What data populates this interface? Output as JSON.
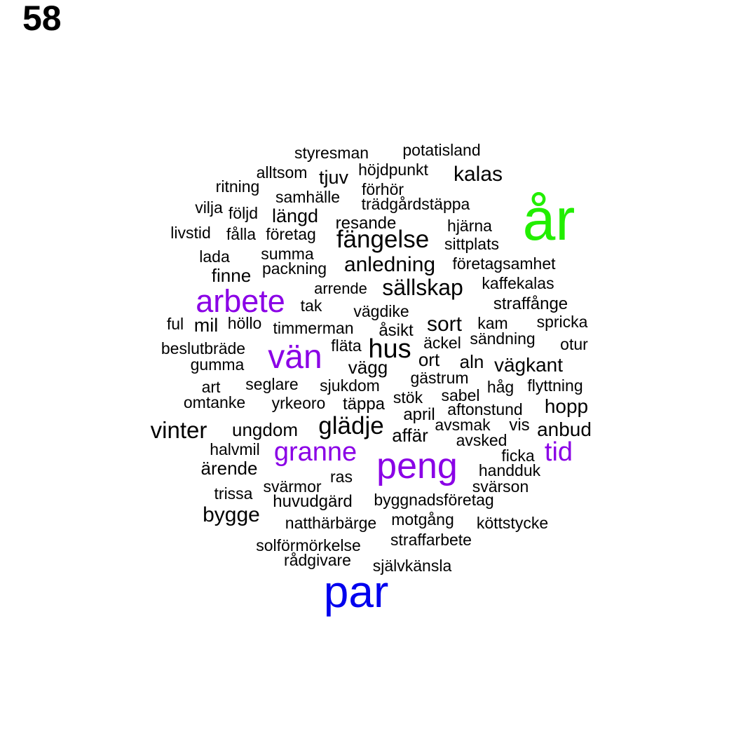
{
  "page_number": "58",
  "colors": {
    "green": "#22ee00",
    "blue": "#0000ee",
    "purple": "#8a00e6",
    "black": "#000000"
  },
  "words": [
    {
      "text": "styresman",
      "color": "black"
    },
    {
      "text": "potatisland",
      "color": "black"
    },
    {
      "text": "alltsom",
      "color": "black"
    },
    {
      "text": "tjuv",
      "color": "black"
    },
    {
      "text": "höjdpunkt",
      "color": "black"
    },
    {
      "text": "kalas",
      "color": "black"
    },
    {
      "text": "ritning",
      "color": "black"
    },
    {
      "text": "förhör",
      "color": "black"
    },
    {
      "text": "samhälle",
      "color": "black"
    },
    {
      "text": "trädgårdstäppa",
      "color": "black"
    },
    {
      "text": "vilja",
      "color": "black"
    },
    {
      "text": "följd",
      "color": "black"
    },
    {
      "text": "längd",
      "color": "black"
    },
    {
      "text": "år",
      "color": "green"
    },
    {
      "text": "resande",
      "color": "black"
    },
    {
      "text": "hjärna",
      "color": "black"
    },
    {
      "text": "livstid",
      "color": "black"
    },
    {
      "text": "fålla",
      "color": "black"
    },
    {
      "text": "företag",
      "color": "black"
    },
    {
      "text": "fängelse",
      "color": "black"
    },
    {
      "text": "sittplats",
      "color": "black"
    },
    {
      "text": "lada",
      "color": "black"
    },
    {
      "text": "summa",
      "color": "black"
    },
    {
      "text": "anledning",
      "color": "black"
    },
    {
      "text": "företagsamhet",
      "color": "black"
    },
    {
      "text": "packning",
      "color": "black"
    },
    {
      "text": "finne",
      "color": "black"
    },
    {
      "text": "kaffekalas",
      "color": "black"
    },
    {
      "text": "arrende",
      "color": "black"
    },
    {
      "text": "sällskap",
      "color": "black"
    },
    {
      "text": "arbete",
      "color": "purple"
    },
    {
      "text": "tak",
      "color": "black"
    },
    {
      "text": "straffånge",
      "color": "black"
    },
    {
      "text": "vägdike",
      "color": "black"
    },
    {
      "text": "ful",
      "color": "black"
    },
    {
      "text": "mil",
      "color": "black"
    },
    {
      "text": "höllo",
      "color": "black"
    },
    {
      "text": "timmerman",
      "color": "black"
    },
    {
      "text": "åsikt",
      "color": "black"
    },
    {
      "text": "sort",
      "color": "black"
    },
    {
      "text": "kam",
      "color": "black"
    },
    {
      "text": "spricka",
      "color": "black"
    },
    {
      "text": "sändning",
      "color": "black"
    },
    {
      "text": "äckel",
      "color": "black"
    },
    {
      "text": "beslutbräde",
      "color": "black"
    },
    {
      "text": "fläta",
      "color": "black"
    },
    {
      "text": "hus",
      "color": "black"
    },
    {
      "text": "otur",
      "color": "black"
    },
    {
      "text": "vän",
      "color": "purple"
    },
    {
      "text": "gumma",
      "color": "black"
    },
    {
      "text": "vägg",
      "color": "black"
    },
    {
      "text": "ort",
      "color": "black"
    },
    {
      "text": "aln",
      "color": "black"
    },
    {
      "text": "vägkant",
      "color": "black"
    },
    {
      "text": "gästrum",
      "color": "black"
    },
    {
      "text": "art",
      "color": "black"
    },
    {
      "text": "seglare",
      "color": "black"
    },
    {
      "text": "sjukdom",
      "color": "black"
    },
    {
      "text": "håg",
      "color": "black"
    },
    {
      "text": "flyttning",
      "color": "black"
    },
    {
      "text": "omtanke",
      "color": "black"
    },
    {
      "text": "yrkeoro",
      "color": "black"
    },
    {
      "text": "täppa",
      "color": "black"
    },
    {
      "text": "stök",
      "color": "black"
    },
    {
      "text": "sabel",
      "color": "black"
    },
    {
      "text": "aftonstund",
      "color": "black"
    },
    {
      "text": "hopp",
      "color": "black"
    },
    {
      "text": "april",
      "color": "black"
    },
    {
      "text": "vinter",
      "color": "black"
    },
    {
      "text": "ungdom",
      "color": "black"
    },
    {
      "text": "glädje",
      "color": "black"
    },
    {
      "text": "avsmak",
      "color": "black"
    },
    {
      "text": "vis",
      "color": "black"
    },
    {
      "text": "anbud",
      "color": "black"
    },
    {
      "text": "affär",
      "color": "black"
    },
    {
      "text": "avsked",
      "color": "black"
    },
    {
      "text": "halvmil",
      "color": "black"
    },
    {
      "text": "granne",
      "color": "purple"
    },
    {
      "text": "tid",
      "color": "purple"
    },
    {
      "text": "ficka",
      "color": "black"
    },
    {
      "text": "ärende",
      "color": "black"
    },
    {
      "text": "peng",
      "color": "purple"
    },
    {
      "text": "handduk",
      "color": "black"
    },
    {
      "text": "ras",
      "color": "black"
    },
    {
      "text": "svärmor",
      "color": "black"
    },
    {
      "text": "svärson",
      "color": "black"
    },
    {
      "text": "trissa",
      "color": "black"
    },
    {
      "text": "huvudgärd",
      "color": "black"
    },
    {
      "text": "byggnadsföretag",
      "color": "black"
    },
    {
      "text": "bygge",
      "color": "black"
    },
    {
      "text": "natthärbärge",
      "color": "black"
    },
    {
      "text": "motgång",
      "color": "black"
    },
    {
      "text": "köttstycke",
      "color": "black"
    },
    {
      "text": "straffarbete",
      "color": "black"
    },
    {
      "text": "solförmörkelse",
      "color": "black"
    },
    {
      "text": "rådgivare",
      "color": "black"
    },
    {
      "text": "självkänsla",
      "color": "black"
    },
    {
      "text": "par",
      "color": "blue"
    }
  ]
}
